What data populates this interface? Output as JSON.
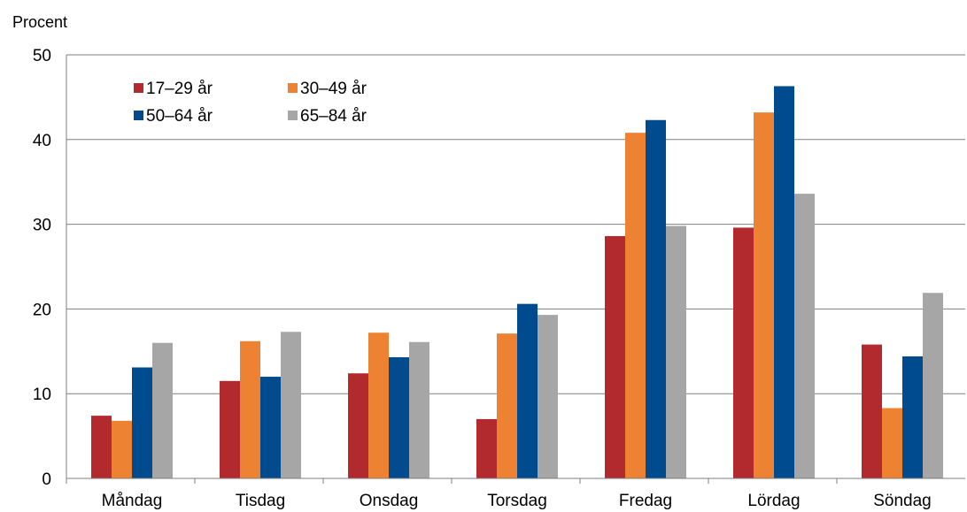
{
  "chart_data": {
    "type": "bar",
    "title": "",
    "unit_label": "Procent",
    "xlabel": "",
    "ylabel": "",
    "ylim": [
      0,
      50
    ],
    "yticks": [
      0,
      10,
      20,
      30,
      40,
      50
    ],
    "grid": "horizontal",
    "legend_position": "top-left",
    "categories": [
      "Måndag",
      "Tisdag",
      "Onsdag",
      "Torsdag",
      "Fredag",
      "Lördag",
      "Söndag"
    ],
    "series": [
      {
        "name": "17–29 år",
        "color": "#B2292E",
        "values": [
          7.4,
          11.5,
          12.4,
          7.0,
          28.6,
          29.6,
          15.8
        ]
      },
      {
        "name": "30–49 år",
        "color": "#EE8233",
        "values": [
          6.8,
          16.2,
          17.2,
          17.1,
          40.8,
          43.2,
          8.3
        ]
      },
      {
        "name": "50–64 år",
        "color": "#004B8D",
        "values": [
          13.1,
          12.0,
          14.3,
          20.6,
          42.3,
          46.3,
          14.4
        ]
      },
      {
        "name": "65–84 år",
        "color": "#A6A6A6",
        "values": [
          16.0,
          17.3,
          16.1,
          19.3,
          29.8,
          33.6,
          21.9
        ]
      }
    ]
  }
}
